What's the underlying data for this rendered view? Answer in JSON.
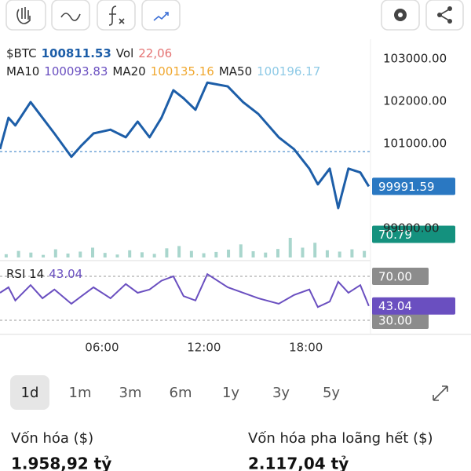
{
  "chart_data": [
    {
      "type": "line",
      "legend": [
        {
          "name": "$BTC",
          "value": 100811.53,
          "color": "#1d5ea8"
        },
        {
          "name": "Vol",
          "value": 22.06,
          "value_label": "22,06",
          "color": "#e57373"
        },
        {
          "name": "MA10",
          "value": 100093.83,
          "color": "#6a4fc0"
        },
        {
          "name": "MA20",
          "value": 100135.16,
          "color": "#f0a830"
        },
        {
          "name": "MA50",
          "value": 100196.17,
          "color": "#8ecae6"
        }
      ],
      "x": [
        0,
        0.5,
        0.9,
        1.8,
        2.5,
        3.2,
        4.2,
        4.8,
        5.5,
        6.5,
        7.4,
        8.1,
        8.8,
        9.5,
        10.2,
        10.8,
        11.5,
        12.2,
        13.4,
        14.3,
        15.2,
        16.4,
        17.3,
        18.2,
        18.7,
        19.4,
        19.9,
        20.5,
        21.2,
        21.7
      ],
      "series": [
        {
          "color": "#1d5ea8",
          "values": [
            100870,
            101610,
            101430,
            101980,
            101610,
            101240,
            100690,
            100960,
            101240,
            101330,
            101150,
            101520,
            101150,
            101610,
            102260,
            102070,
            101800,
            102440,
            102350,
            101980,
            101700,
            101150,
            100870,
            100410,
            100040,
            100410,
            99480,
            100410,
            100320,
            99991.59
          ]
        }
      ],
      "last_value": 99991.59,
      "last_color": "#2a78c2",
      "xlim": [
        0,
        21.8
      ],
      "ylim": [
        98370,
        103370
      ],
      "yticks": [
        {
          "value": 103000,
          "label": "103000.00"
        },
        {
          "value": 102000,
          "label": "102000.00"
        },
        {
          "value": 101000,
          "label": "101000.00"
        },
        {
          "value": 99000,
          "label": "99000.00"
        }
      ],
      "xticks": [
        {
          "value": 6,
          "label": "06:00"
        },
        {
          "value": 12,
          "label": "12:00"
        },
        {
          "value": 18,
          "label": "18:00"
        }
      ]
    },
    {
      "type": "bar",
      "color": "#a9d6cd",
      "values": [
        10,
        20,
        15,
        8,
        25,
        12,
        18,
        30,
        14,
        9,
        22,
        16,
        11,
        28,
        35,
        20,
        13,
        17,
        24,
        40,
        19,
        15,
        26,
        60,
        30,
        45,
        22,
        18,
        25,
        20
      ],
      "last_value": 70.79,
      "last_color": "#14917e",
      "ylim": [
        0,
        175
      ]
    },
    {
      "type": "line",
      "name": "RSI 14",
      "color": "#6a4fc0",
      "x": [
        0,
        0.5,
        0.9,
        1.8,
        2.5,
        3.2,
        4.2,
        4.8,
        5.5,
        6.5,
        7.4,
        8.1,
        8.8,
        9.5,
        10.2,
        10.8,
        11.5,
        12.2,
        13.4,
        14.3,
        15.2,
        16.4,
        17.3,
        18.2,
        18.7,
        19.4,
        19.9,
        20.5,
        21.2,
        21.7
      ],
      "values": [
        55,
        60,
        48,
        62,
        50,
        58,
        45,
        52,
        60,
        50,
        63,
        55,
        58,
        66,
        70,
        52,
        48,
        72,
        60,
        55,
        50,
        45,
        53,
        58,
        42,
        47,
        65,
        55,
        62,
        43.04
      ],
      "last_value": 43.04,
      "last_color": "#6a4fc0",
      "xlim": [
        0,
        21.8
      ],
      "ylim": [
        21.4,
        80
      ],
      "yticks": [
        {
          "value": 70,
          "label": "70.00"
        },
        {
          "value": 30,
          "label": "30.00"
        }
      ]
    }
  ],
  "ranges": [
    "1d",
    "1m",
    "3m",
    "6m",
    "1y",
    "3y",
    "5y"
  ],
  "selected_range": 0,
  "stats": [
    {
      "label": "Vốn hóa ($)",
      "value": "1.958,92 tỷ"
    },
    {
      "label": "Vốn hóa pha loãng hết ($)",
      "value": "2.117,04 tỷ"
    }
  ]
}
